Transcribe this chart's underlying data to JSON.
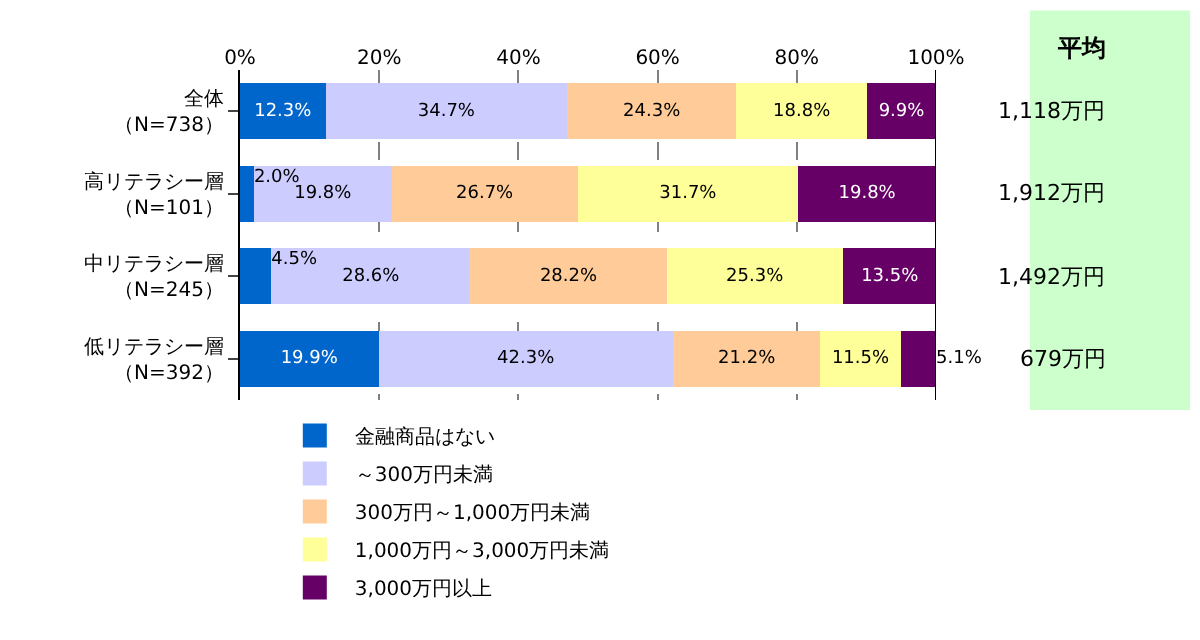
{
  "chart_data": {
    "type": "bar",
    "orientation": "horizontal",
    "stacked": true,
    "categories": [
      "全体（N=738）",
      "高リテラシー層（N=101）",
      "中リテラシー層（N=245）",
      "低リテラシー層（N=392）"
    ],
    "series": [
      {
        "name": "金融商品はない",
        "color": "#0066cc",
        "values": [
          12.3,
          2.0,
          4.5,
          19.9
        ],
        "value_labels": [
          "12.3%",
          "2.0%",
          "4.5%",
          "19.9%"
        ]
      },
      {
        "name": "～300万円未満",
        "color": "#ccccff",
        "values": [
          34.7,
          19.8,
          28.6,
          42.3
        ],
        "value_labels": [
          "34.7%",
          "19.8%",
          "28.6%",
          "42.3%"
        ]
      },
      {
        "name": "300万円～1,000万円未満",
        "color": "#ffcc99",
        "values": [
          24.3,
          26.7,
          28.2,
          21.2
        ],
        "value_labels": [
          "24.3%",
          "26.7%",
          "28.2%",
          "21.2%"
        ]
      },
      {
        "name": "1,000万円～3,000万円未満",
        "color": "#ffff99",
        "values": [
          18.8,
          31.7,
          25.3,
          11.5
        ],
        "value_labels": [
          "18.8%",
          "31.7%",
          "25.3%",
          "11.5%"
        ]
      },
      {
        "name": "3,000万円以上",
        "color": "#660066",
        "values": [
          9.9,
          19.8,
          13.5,
          5.1
        ],
        "value_labels": [
          "9.9%",
          "19.8%",
          "13.5%",
          "5.1%"
        ]
      }
    ],
    "xlim": [
      0,
      100
    ],
    "xticks": [
      {
        "value": 0,
        "label": "0%"
      },
      {
        "value": 20,
        "label": "20%"
      },
      {
        "value": 40,
        "label": "40%"
      },
      {
        "value": 60,
        "label": "60%"
      },
      {
        "value": 80,
        "label": "80%"
      },
      {
        "value": 100,
        "label": "100%"
      }
    ],
    "grid": "x",
    "legend": "bottom",
    "annotations": [
      "平均",
      "1,118万円",
      "1,912万円",
      "1,492万円",
      "679万円"
    ]
  }
}
